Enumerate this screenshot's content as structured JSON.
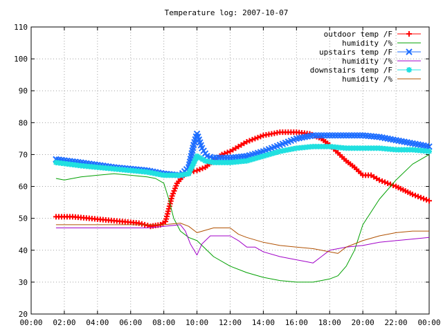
{
  "chart_data": {
    "type": "line",
    "title": "Temperature log: 2007-10-07",
    "xlabel": "",
    "ylabel": "",
    "xlim": [
      0,
      24
    ],
    "ylim": [
      20,
      110
    ],
    "grid": true,
    "legend_position": "top-right",
    "x_tick_labels": [
      "00:00",
      "02:00",
      "04:00",
      "06:00",
      "08:00",
      "10:00",
      "12:00",
      "14:00",
      "16:00",
      "18:00",
      "20:00",
      "22:00",
      "00:00"
    ],
    "y_tick_labels": [
      "20",
      "30",
      "40",
      "50",
      "60",
      "70",
      "80",
      "90",
      "100",
      "110"
    ],
    "series": [
      {
        "name": "outdoor temp /F",
        "color": "#ff0000",
        "marker": "plus",
        "x": [
          1.5,
          2.5,
          3.5,
          4.5,
          5.5,
          6.5,
          7.2,
          7.8,
          8.1,
          8.3,
          8.5,
          8.8,
          9.2,
          9.6,
          10,
          10.5,
          11,
          11.5,
          12,
          12.5,
          13,
          14,
          15,
          16,
          16.8,
          17.5,
          18,
          18.5,
          19,
          19.5,
          20,
          20.5,
          21,
          22,
          23,
          24
        ],
        "y": [
          50.5,
          50.5,
          50,
          49.5,
          49,
          48.5,
          47.5,
          48,
          49,
          53,
          57,
          61,
          63.5,
          64.5,
          65,
          66,
          68,
          70,
          71,
          72.5,
          74,
          76,
          77,
          77,
          76.5,
          75,
          73,
          70.5,
          68,
          66,
          63.5,
          63.5,
          62,
          60,
          57.5,
          55.5
        ]
      },
      {
        "name": "humidity /%",
        "color": "#00a000",
        "marker": "none",
        "x": [
          1.5,
          2,
          3,
          4,
          5,
          6,
          7,
          7.5,
          8,
          8.3,
          8.6,
          9,
          9.5,
          10,
          11,
          12,
          13,
          14,
          15,
          16,
          17,
          17.5,
          18,
          18.5,
          19,
          19.5,
          20,
          21,
          22,
          23,
          24
        ],
        "y": [
          62.5,
          62,
          63,
          63.5,
          64,
          63.5,
          63,
          62.5,
          61,
          56,
          50,
          46,
          44,
          43,
          38,
          35,
          33,
          31.5,
          30.5,
          30,
          30,
          30.5,
          31,
          32,
          35,
          40,
          48,
          56,
          62,
          67,
          70
        ]
      },
      {
        "name": "upstairs temp /F",
        "color": "#1e6eff",
        "marker": "x",
        "x": [
          1.5,
          3,
          5,
          7,
          8,
          9,
          9.5,
          9.8,
          10,
          10.3,
          10.6,
          11,
          12,
          13,
          14,
          15,
          16,
          17,
          18,
          19,
          20,
          21,
          22,
          23,
          24
        ],
        "y": [
          68.5,
          67.5,
          66,
          65,
          64,
          63.5,
          66,
          73,
          76.5,
          72,
          69.5,
          69,
          69,
          69.5,
          71,
          73,
          75,
          76,
          76,
          76,
          76,
          75.5,
          74.5,
          73.5,
          72.5
        ]
      },
      {
        "name": "humidity /%",
        "color": "#a000c8",
        "marker": "none",
        "x": [
          1.5,
          3,
          5,
          7,
          8,
          9,
          9.3,
          9.6,
          10,
          10.3,
          10.8,
          11.5,
          12,
          12.5,
          13,
          13.5,
          14,
          15,
          16,
          16.5,
          17,
          17.5,
          18,
          19,
          20,
          21,
          22,
          23,
          24
        ],
        "y": [
          47,
          47,
          47,
          47,
          47.5,
          48,
          46,
          42,
          38.5,
          42,
          44.5,
          44.5,
          44.5,
          43,
          41,
          41,
          39.5,
          38,
          37,
          36.5,
          36,
          38,
          40,
          41,
          41.5,
          42.5,
          43,
          43.5,
          44
        ]
      },
      {
        "name": "downstairs temp /F",
        "color": "#20e0e0",
        "marker": "star",
        "x": [
          1.5,
          3,
          5,
          7,
          8,
          9,
          9.5,
          10,
          10.5,
          11,
          12,
          13,
          14,
          15,
          16,
          17,
          18,
          19,
          20,
          21,
          22,
          23,
          24
        ],
        "y": [
          67.5,
          66.5,
          65.5,
          64.5,
          63.5,
          63.5,
          64,
          69.5,
          68,
          67.5,
          67.5,
          68,
          69.5,
          71,
          72,
          72.5,
          72.5,
          72,
          72,
          72,
          71.5,
          71.5,
          71
        ]
      },
      {
        "name": "humidity /%",
        "color": "#b05000",
        "marker": "none",
        "x": [
          1.5,
          3,
          5,
          7,
          8,
          9,
          9.5,
          10,
          11,
          12,
          12.5,
          13,
          14,
          15,
          16,
          17,
          17.5,
          18,
          18.5,
          19,
          20,
          21,
          22,
          23,
          24
        ],
        "y": [
          48,
          48,
          48,
          48,
          48,
          48.5,
          47.5,
          45.5,
          47,
          47,
          45,
          44,
          42.5,
          41.5,
          41,
          40.5,
          40,
          39.5,
          39,
          41,
          43,
          44.5,
          45.5,
          46,
          46
        ]
      }
    ]
  }
}
